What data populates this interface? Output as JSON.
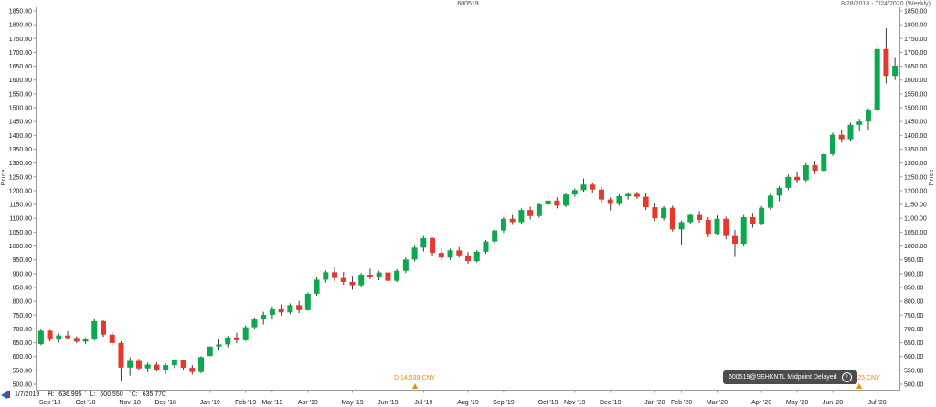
{
  "header": {
    "title": "600519",
    "range_label": "8/28/2018 - 7/24/2020 (Weekly)"
  },
  "y_axis": {
    "title": "Price"
  },
  "readout": {
    "date": "1/7/2019",
    "h_label": "H:",
    "h": "636.995",
    "l_label": "L:",
    "l": "600.550",
    "c_label": "C:",
    "c": "635.770"
  },
  "badge": {
    "text": "600519@SEHKNTL Midpoint Delayed",
    "info_icon": "?"
  },
  "events": [
    {
      "label": "D 14.539 CNY",
      "date": "2019-06-24"
    },
    {
      "label": "D 17.025 CNY",
      "date": "2020-06-22"
    }
  ],
  "colors": {
    "up": "#0da84e",
    "down": "#e8382c",
    "wick": "#3a3a3a",
    "axis_line": "#9a9a9a",
    "axis_text": "#1a1a1a",
    "event": "#ef8b00",
    "badge_bg": "#4d4d4d",
    "scroll_arrow": "#1565d8"
  },
  "chart_data": {
    "type": "candlestick",
    "symbol": "600519@SEHKNTL",
    "interval": "weekly",
    "title": "600519",
    "ylabel": "Price",
    "ylim": [
      500,
      1850
    ],
    "ytick_step": 50,
    "grid": false,
    "x_tick_labels": [
      "Sep '18",
      "Oct '18",
      "Nov '18",
      "Dec '18",
      "Jan '19",
      "Feb '19",
      "Mar '19",
      "Apr '19",
      "May '19",
      "Jun '19",
      "Jul '19",
      "Aug '19",
      "Sep '19",
      "Oct '19",
      "Nov '19",
      "Dec '19",
      "Jan '20",
      "Feb '20",
      "Mar '20",
      "Apr '20",
      "May '20",
      "Jun '20",
      "Jul '20"
    ],
    "columns": [
      "date",
      "open",
      "high",
      "low",
      "close"
    ],
    "candles": [
      [
        "2018-08-27",
        645,
        699,
        641,
        693
      ],
      [
        "2018-09-03",
        693,
        696,
        654,
        661
      ],
      [
        "2018-09-10",
        661,
        684,
        650,
        676
      ],
      [
        "2018-09-17",
        676,
        691,
        660,
        667
      ],
      [
        "2018-09-24",
        667,
        673,
        648,
        654
      ],
      [
        "2018-10-01",
        654,
        668,
        646,
        663
      ],
      [
        "2018-10-08",
        663,
        735,
        658,
        728
      ],
      [
        "2018-10-15",
        728,
        731,
        671,
        679
      ],
      [
        "2018-10-22",
        679,
        688,
        640,
        649
      ],
      [
        "2018-10-29",
        649,
        655,
        509,
        560
      ],
      [
        "2018-11-05",
        560,
        597,
        531,
        584
      ],
      [
        "2018-11-12",
        584,
        592,
        549,
        557
      ],
      [
        "2018-11-19",
        557,
        578,
        543,
        571
      ],
      [
        "2018-11-26",
        571,
        579,
        546,
        551
      ],
      [
        "2018-12-03",
        551,
        576,
        537,
        569
      ],
      [
        "2018-12-10",
        569,
        591,
        558,
        586
      ],
      [
        "2018-12-17",
        586,
        589,
        551,
        559
      ],
      [
        "2018-12-24",
        559,
        569,
        535,
        544
      ],
      [
        "2018-12-31",
        544,
        601,
        540,
        598
      ],
      [
        "2019-01-07",
        602,
        636.995,
        600.55,
        635.77
      ],
      [
        "2019-01-14",
        636,
        663,
        622,
        644
      ],
      [
        "2019-01-21",
        644,
        674,
        634,
        669
      ],
      [
        "2019-01-28",
        669,
        686,
        648,
        659
      ],
      [
        "2019-02-11",
        659,
        712,
        656,
        706
      ],
      [
        "2019-02-18",
        706,
        741,
        699,
        734
      ],
      [
        "2019-02-25",
        734,
        762,
        716,
        751
      ],
      [
        "2019-03-04",
        751,
        781,
        734,
        771
      ],
      [
        "2019-03-11",
        771,
        789,
        748,
        760
      ],
      [
        "2019-03-18",
        760,
        792,
        753,
        786
      ],
      [
        "2019-03-25",
        786,
        801,
        757,
        768
      ],
      [
        "2019-04-01",
        768,
        832,
        766,
        827
      ],
      [
        "2019-04-08",
        827,
        886,
        820,
        878
      ],
      [
        "2019-04-15",
        878,
        912,
        868,
        905
      ],
      [
        "2019-04-22",
        905,
        922,
        872,
        884
      ],
      [
        "2019-04-29",
        884,
        906,
        860,
        870
      ],
      [
        "2019-05-06",
        870,
        892,
        842,
        858
      ],
      [
        "2019-05-13",
        858,
        902,
        851,
        896
      ],
      [
        "2019-05-20",
        896,
        918,
        880,
        888
      ],
      [
        "2019-05-27",
        888,
        910,
        876,
        904
      ],
      [
        "2019-06-03",
        904,
        912,
        862,
        874
      ],
      [
        "2019-06-10",
        874,
        916,
        869,
        910
      ],
      [
        "2019-06-17",
        910,
        958,
        902,
        951
      ],
      [
        "2019-06-24",
        951,
        1001,
        944,
        994
      ],
      [
        "2019-07-01",
        994,
        1035.6,
        980,
        1028
      ],
      [
        "2019-07-08",
        1028,
        1032,
        962,
        975
      ],
      [
        "2019-07-15",
        975,
        992,
        948,
        958
      ],
      [
        "2019-07-22",
        958,
        990,
        950,
        984
      ],
      [
        "2019-07-29",
        984,
        996,
        958,
        966
      ],
      [
        "2019-08-05",
        966,
        978,
        936,
        945
      ],
      [
        "2019-08-12",
        945,
        985,
        940,
        979
      ],
      [
        "2019-08-19",
        979,
        1022,
        972,
        1016
      ],
      [
        "2019-08-26",
        1016,
        1062,
        1008,
        1056
      ],
      [
        "2019-09-02",
        1056,
        1104,
        1048,
        1098
      ],
      [
        "2019-09-09",
        1098,
        1112,
        1076,
        1086
      ],
      [
        "2019-09-16",
        1086,
        1136,
        1080,
        1130
      ],
      [
        "2019-09-23",
        1130,
        1142,
        1096,
        1108
      ],
      [
        "2019-09-30",
        1108,
        1156,
        1102,
        1150
      ],
      [
        "2019-10-14",
        1150,
        1188,
        1142,
        1164
      ],
      [
        "2019-10-21",
        1164,
        1176,
        1136,
        1146
      ],
      [
        "2019-10-28",
        1146,
        1192,
        1140,
        1186
      ],
      [
        "2019-11-04",
        1186,
        1208,
        1178,
        1202
      ],
      [
        "2019-11-11",
        1202,
        1244,
        1196,
        1222
      ],
      [
        "2019-11-18",
        1222,
        1230,
        1192,
        1204
      ],
      [
        "2019-11-25",
        1204,
        1212,
        1158,
        1168
      ],
      [
        "2019-12-02",
        1168,
        1176,
        1128,
        1152
      ],
      [
        "2019-12-09",
        1152,
        1186,
        1146,
        1180
      ],
      [
        "2019-12-16",
        1180,
        1194,
        1168,
        1188
      ],
      [
        "2019-12-23",
        1188,
        1196,
        1170,
        1178
      ],
      [
        "2019-12-30",
        1178,
        1190,
        1130,
        1140
      ],
      [
        "2020-01-06",
        1140,
        1156,
        1090,
        1100
      ],
      [
        "2020-01-13",
        1100,
        1144,
        1092,
        1138
      ],
      [
        "2020-01-20",
        1138,
        1146,
        1052,
        1060
      ],
      [
        "2020-02-03",
        1060,
        1092,
        1003,
        1086
      ],
      [
        "2020-02-10",
        1086,
        1118,
        1080,
        1112
      ],
      [
        "2020-02-17",
        1112,
        1126,
        1084,
        1094
      ],
      [
        "2020-02-24",
        1094,
        1104,
        1032,
        1044
      ],
      [
        "2020-03-02",
        1044,
        1110,
        1038,
        1098
      ],
      [
        "2020-03-09",
        1098,
        1106,
        1024,
        1036
      ],
      [
        "2020-03-16",
        1036,
        1058,
        960,
        1008
      ],
      [
        "2020-03-23",
        1008,
        1112,
        998,
        1104
      ],
      [
        "2020-03-30",
        1104,
        1120,
        1066,
        1080
      ],
      [
        "2020-04-06",
        1080,
        1144,
        1074,
        1138
      ],
      [
        "2020-04-13",
        1138,
        1190,
        1130,
        1182
      ],
      [
        "2020-04-20",
        1182,
        1216,
        1162,
        1210
      ],
      [
        "2020-04-27",
        1210,
        1258,
        1202,
        1250
      ],
      [
        "2020-05-04",
        1250,
        1270,
        1226,
        1238
      ],
      [
        "2020-05-11",
        1238,
        1300,
        1232,
        1292
      ],
      [
        "2020-05-18",
        1292,
        1308,
        1260,
        1272
      ],
      [
        "2020-05-25",
        1272,
        1338,
        1266,
        1332
      ],
      [
        "2020-06-01",
        1332,
        1410,
        1326,
        1402
      ],
      [
        "2020-06-08",
        1402,
        1418,
        1374,
        1386
      ],
      [
        "2020-06-15",
        1386,
        1446,
        1380,
        1438
      ],
      [
        "2020-06-22",
        1438,
        1460,
        1414,
        1450
      ],
      [
        "2020-06-29",
        1450,
        1498,
        1420,
        1490
      ],
      [
        "2020-07-06",
        1490,
        1726,
        1484,
        1712
      ],
      [
        "2020-07-13",
        1712,
        1787,
        1588,
        1615
      ],
      [
        "2020-07-20",
        1615,
        1680,
        1600,
        1652
      ]
    ]
  }
}
